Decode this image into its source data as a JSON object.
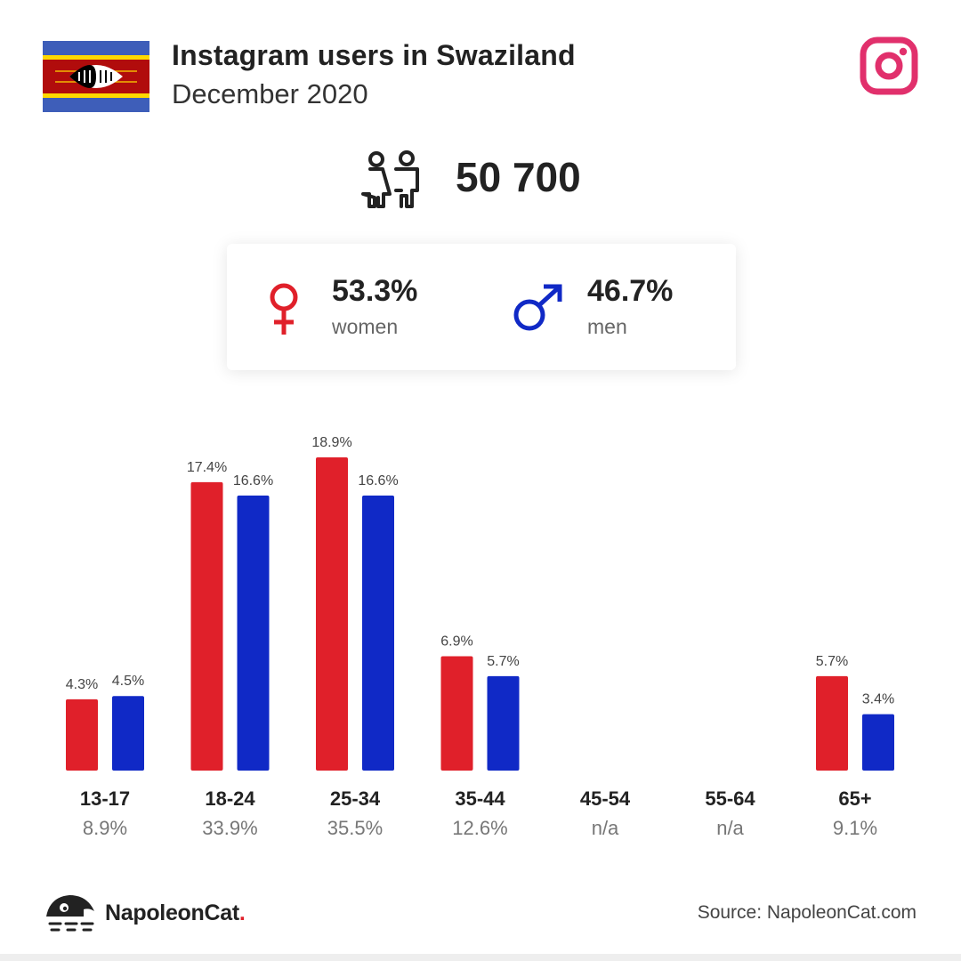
{
  "header": {
    "title": "Instagram users in Swaziland",
    "subtitle": "December 2020"
  },
  "total_users": "50 700",
  "gender": {
    "women_pct": "53.3%",
    "women_label": "women",
    "men_pct": "46.7%",
    "men_label": "men"
  },
  "colors": {
    "women": "#e0202a",
    "men": "#1029c6",
    "instagram": "#e1306c"
  },
  "icons": {
    "flag": "swaziland-flag-icon",
    "instagram": "instagram-icon",
    "users": "users-icon",
    "female": "female-symbol-icon",
    "male": "male-symbol-icon",
    "logo": "napoleoncat-logo-icon"
  },
  "chart_data": {
    "type": "bar",
    "categories": [
      "13-17",
      "18-24",
      "25-34",
      "35-44",
      "45-54",
      "55-64",
      "65+"
    ],
    "category_totals": [
      "8.9%",
      "33.9%",
      "35.5%",
      "12.6%",
      "n/a",
      "n/a",
      "9.1%"
    ],
    "series": [
      {
        "values": [
          4.3,
          17.4,
          18.9,
          6.9,
          null,
          null,
          5.7
        ],
        "labels": [
          "4.3%",
          "17.4%",
          "18.9%",
          "6.9%",
          "",
          "",
          "5.7%"
        ],
        "color": "#e0202a"
      },
      {
        "values": [
          4.5,
          16.6,
          16.6,
          5.7,
          null,
          null,
          3.4
        ],
        "labels": [
          "4.5%",
          "16.6%",
          "16.6%",
          "5.7%",
          "",
          "",
          "3.4%"
        ],
        "color": "#1029c6"
      }
    ],
    "ylim": [
      0,
      18.9
    ],
    "grid": false
  },
  "footer": {
    "brand_name": "NapoleonCat",
    "brand_dot": ".",
    "source": "Source: NapoleonCat.com"
  }
}
